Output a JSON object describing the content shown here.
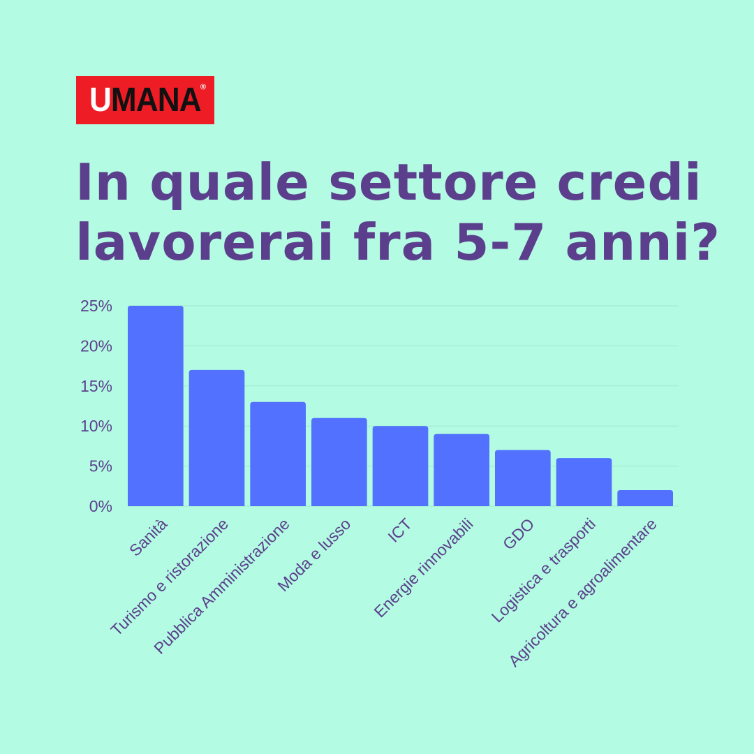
{
  "logo": {
    "first": "U",
    "rest": "MANA",
    "reg": "®"
  },
  "title": {
    "line1": "In quale settore credi",
    "line2": "lavorerai fra 5-7 anni?"
  },
  "colors": {
    "background": "#b3fbe2",
    "bar": "#5271ff",
    "text": "#5b3f8c",
    "logo_bg": "#ee1c25"
  },
  "chart_data": {
    "type": "bar",
    "categories": [
      "Sanità",
      "Turismo e ristorazione",
      "Pubblica Amministrazione",
      "Moda e lusso",
      "ICT",
      "Energie rinnovabili",
      "GDO",
      "Logistica e trasporti",
      "Agricoltura e agroalimentare"
    ],
    "values": [
      25,
      17,
      13,
      11,
      10,
      9,
      7,
      6,
      2
    ],
    "ylim": [
      0,
      25
    ],
    "yticks": [
      0,
      5,
      10,
      15,
      20,
      25
    ],
    "ytick_labels": [
      "0%",
      "5%",
      "10%",
      "15%",
      "20%",
      "25%"
    ],
    "grid": true,
    "legend": "none"
  }
}
